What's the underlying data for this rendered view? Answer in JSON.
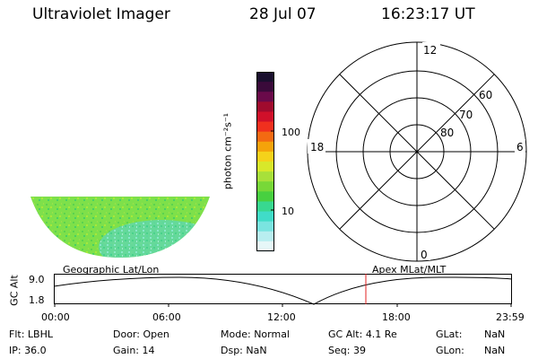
{
  "header": {
    "instrument": "Ultraviolet Imager",
    "date": "28 Jul 07",
    "time": "16:23:17 UT"
  },
  "colorbar": {
    "unit_label": "photon cm⁻²s⁻¹",
    "ticks": [
      "100",
      "10"
    ],
    "colors": [
      "#1a0f2e",
      "#3a0a3a",
      "#6a0a4a",
      "#a00b2e",
      "#d0102a",
      "#f0301e",
      "#f36a12",
      "#f5a30a",
      "#f5d21a",
      "#d8e82a",
      "#a8e03a",
      "#78d838",
      "#48d040",
      "#38d890",
      "#40dcc8",
      "#7ae4e0",
      "#b8eef0",
      "#e6f7f8"
    ]
  },
  "polar_plot": {
    "mlt_labels": [
      "12",
      "18",
      "6",
      "0"
    ],
    "lat_labels": [
      "60",
      "70",
      "80"
    ]
  },
  "alt_plot": {
    "y_axis_label": "GC Alt",
    "y_ticks": [
      "9.0",
      "1.8"
    ],
    "left_title": "Geographic Lat/Lon",
    "right_title": "Apex MLat/MLT",
    "x_ticks": [
      "00:00",
      "06:00",
      "12:00",
      "18:00",
      "23:59"
    ]
  },
  "status": {
    "flt": {
      "label": "Flt:",
      "value": "LBHL"
    },
    "ip": {
      "label": "IP:",
      "value": "36.0"
    },
    "door": {
      "label": "Door:",
      "value": "Open"
    },
    "gain": {
      "label": "Gain:",
      "value": "14"
    },
    "mode": {
      "label": "Mode:",
      "value": "Normal"
    },
    "dsp": {
      "label": "Dsp:",
      "value": "NaN"
    },
    "gc_alt": {
      "label": "GC Alt:",
      "value": "4.1 Re"
    },
    "seq": {
      "label": "Seq:",
      "value": "39"
    },
    "glat": {
      "label": "GLat:",
      "value": "NaN"
    },
    "glon": {
      "label": "GLon:",
      "value": "NaN"
    }
  }
}
